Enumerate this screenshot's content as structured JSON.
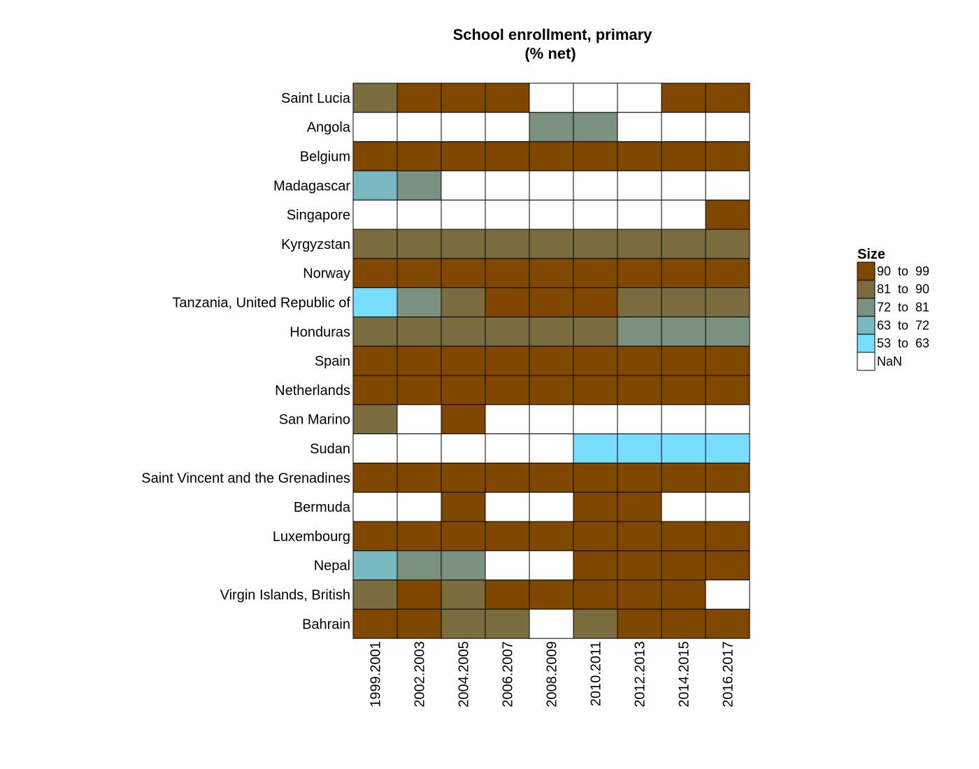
{
  "chart_data": {
    "type": "heatmap",
    "title_lines": [
      "School enrollment, primary",
      "(% net)"
    ],
    "rows": [
      "Saint Lucia",
      "Angola",
      "Belgium",
      "Madagascar",
      "Singapore",
      "Kyrgyzstan",
      "Norway",
      "Tanzania, United Republic of",
      "Honduras",
      "Spain",
      "Netherlands",
      "San Marino",
      "Sudan",
      "Saint Vincent and the Grenadines",
      "Bermuda",
      "Luxembourg",
      "Nepal",
      "Virgin Islands, British",
      "Bahrain"
    ],
    "columns": [
      "1999.2001",
      "2002.2003",
      "2004.2005",
      "2006.2007",
      "2008.2009",
      "2010.2011",
      "2012.2013",
      "2014.2015",
      "2016.2017"
    ],
    "values": [
      [
        "81-90",
        "90-99",
        "90-99",
        "90-99",
        null,
        null,
        null,
        "90-99",
        "90-99"
      ],
      [
        null,
        null,
        null,
        null,
        "72-81",
        "72-81",
        null,
        null,
        null
      ],
      [
        "90-99",
        "90-99",
        "90-99",
        "90-99",
        "90-99",
        "90-99",
        "90-99",
        "90-99",
        "90-99"
      ],
      [
        "63-72",
        "72-81",
        null,
        null,
        null,
        null,
        null,
        null,
        null
      ],
      [
        null,
        null,
        null,
        null,
        null,
        null,
        null,
        null,
        "90-99"
      ],
      [
        "81-90",
        "81-90",
        "81-90",
        "81-90",
        "81-90",
        "81-90",
        "81-90",
        "81-90",
        "81-90"
      ],
      [
        "90-99",
        "90-99",
        "90-99",
        "90-99",
        "90-99",
        "90-99",
        "90-99",
        "90-99",
        "90-99"
      ],
      [
        "53-63",
        "72-81",
        "81-90",
        "90-99",
        "90-99",
        "90-99",
        "81-90",
        "81-90",
        "81-90"
      ],
      [
        "81-90",
        "81-90",
        "81-90",
        "81-90",
        "81-90",
        "81-90",
        "72-81",
        "72-81",
        "72-81"
      ],
      [
        "90-99",
        "90-99",
        "90-99",
        "90-99",
        "90-99",
        "90-99",
        "90-99",
        "90-99",
        "90-99"
      ],
      [
        "90-99",
        "90-99",
        "90-99",
        "90-99",
        "90-99",
        "90-99",
        "90-99",
        "90-99",
        "90-99"
      ],
      [
        "81-90",
        null,
        "90-99",
        null,
        null,
        null,
        null,
        null,
        null
      ],
      [
        null,
        null,
        null,
        null,
        null,
        "53-63",
        "53-63",
        "53-63",
        "53-63"
      ],
      [
        "90-99",
        "90-99",
        "90-99",
        "90-99",
        "90-99",
        "90-99",
        "90-99",
        "90-99",
        "90-99"
      ],
      [
        null,
        null,
        "90-99",
        null,
        null,
        "90-99",
        "90-99",
        null,
        null
      ],
      [
        "90-99",
        "90-99",
        "90-99",
        "90-99",
        "90-99",
        "90-99",
        "90-99",
        "90-99",
        "90-99"
      ],
      [
        "63-72",
        "72-81",
        "72-81",
        null,
        null,
        "90-99",
        "90-99",
        "90-99",
        "90-99"
      ],
      [
        "81-90",
        "90-99",
        "81-90",
        "90-99",
        "90-99",
        "90-99",
        "90-99",
        "90-99",
        null
      ],
      [
        "90-99",
        "90-99",
        "81-90",
        "81-90",
        null,
        "81-90",
        "90-99",
        "90-99",
        "90-99"
      ]
    ],
    "legend": {
      "title": "Size",
      "placement": "right",
      "items": [
        {
          "key": "90-99",
          "label": "90  to  99",
          "color": "#7f4700"
        },
        {
          "key": "81-90",
          "label": "81  to  90",
          "color": "#7a6c3f"
        },
        {
          "key": "72-81",
          "label": "72  to  81",
          "color": "#7a9180"
        },
        {
          "key": "63-72",
          "label": "63  to  72",
          "color": "#78b8c0"
        },
        {
          "key": "53-63",
          "label": "53  to  63",
          "color": "#78ddff"
        },
        {
          "key": "nan",
          "label": "NaN",
          "color": "#ffffff"
        }
      ]
    }
  }
}
